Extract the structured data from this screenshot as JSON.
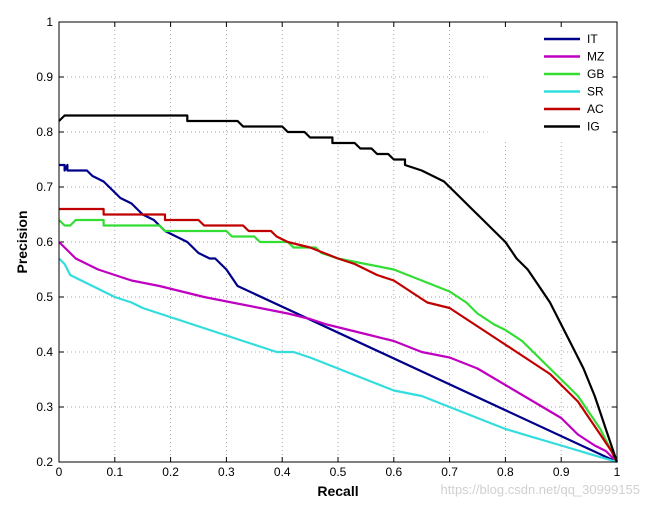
{
  "chart_data": {
    "type": "line",
    "xlabel": "Recall",
    "ylabel": "Precision",
    "xlim": [
      0,
      1
    ],
    "ylim": [
      0.2,
      1
    ],
    "xticks": [
      "0",
      "0.1",
      "0.2",
      "0.3",
      "0.4",
      "0.5",
      "0.6",
      "0.7",
      "0.8",
      "0.9",
      "1"
    ],
    "yticks": [
      "0.2",
      "0.3",
      "0.4",
      "0.5",
      "0.6",
      "0.7",
      "0.8",
      "0.9",
      "1"
    ],
    "grid": true,
    "legend_position": "top-right",
    "series": [
      {
        "name": "IT",
        "color": "#00008b",
        "points": [
          [
            0,
            0.74
          ],
          [
            0.01,
            0.74
          ],
          [
            0.01,
            0.73
          ],
          [
            0.015,
            0.74
          ],
          [
            0.015,
            0.73
          ],
          [
            0.05,
            0.73
          ],
          [
            0.06,
            0.72
          ],
          [
            0.08,
            0.71
          ],
          [
            0.09,
            0.7
          ],
          [
            0.1,
            0.69
          ],
          [
            0.11,
            0.68
          ],
          [
            0.13,
            0.67
          ],
          [
            0.14,
            0.66
          ],
          [
            0.15,
            0.65
          ],
          [
            0.17,
            0.64
          ],
          [
            0.19,
            0.62
          ],
          [
            0.21,
            0.61
          ],
          [
            0.23,
            0.6
          ],
          [
            0.25,
            0.58
          ],
          [
            0.27,
            0.57
          ],
          [
            0.28,
            0.57
          ],
          [
            0.3,
            0.55
          ],
          [
            0.32,
            0.52
          ],
          [
            1,
            0.2
          ]
        ]
      },
      {
        "name": "MZ",
        "color": "#c000c0",
        "points": [
          [
            0,
            0.6
          ],
          [
            0.01,
            0.59
          ],
          [
            0.02,
            0.58
          ],
          [
            0.03,
            0.57
          ],
          [
            0.05,
            0.56
          ],
          [
            0.07,
            0.55
          ],
          [
            0.1,
            0.54
          ],
          [
            0.13,
            0.53
          ],
          [
            0.18,
            0.52
          ],
          [
            0.22,
            0.51
          ],
          [
            0.26,
            0.5
          ],
          [
            0.31,
            0.49
          ],
          [
            0.36,
            0.48
          ],
          [
            0.41,
            0.47
          ],
          [
            0.45,
            0.46
          ],
          [
            0.48,
            0.45
          ],
          [
            0.52,
            0.44
          ],
          [
            0.56,
            0.43
          ],
          [
            0.6,
            0.42
          ],
          [
            0.65,
            0.4
          ],
          [
            0.7,
            0.39
          ],
          [
            0.75,
            0.37
          ],
          [
            0.8,
            0.34
          ],
          [
            0.85,
            0.31
          ],
          [
            0.9,
            0.28
          ],
          [
            0.93,
            0.25
          ],
          [
            0.96,
            0.23
          ],
          [
            0.98,
            0.22
          ],
          [
            1,
            0.2
          ]
        ]
      },
      {
        "name": "GB",
        "color": "#33dd33",
        "points": [
          [
            0,
            0.64
          ],
          [
            0.01,
            0.63
          ],
          [
            0.02,
            0.63
          ],
          [
            0.03,
            0.64
          ],
          [
            0.08,
            0.64
          ],
          [
            0.08,
            0.63
          ],
          [
            0.18,
            0.63
          ],
          [
            0.19,
            0.62
          ],
          [
            0.3,
            0.62
          ],
          [
            0.31,
            0.61
          ],
          [
            0.35,
            0.61
          ],
          [
            0.36,
            0.6
          ],
          [
            0.41,
            0.6
          ],
          [
            0.42,
            0.59
          ],
          [
            0.46,
            0.59
          ],
          [
            0.47,
            0.58
          ],
          [
            0.5,
            0.57
          ],
          [
            0.55,
            0.56
          ],
          [
            0.6,
            0.55
          ],
          [
            0.65,
            0.53
          ],
          [
            0.7,
            0.51
          ],
          [
            0.73,
            0.49
          ],
          [
            0.75,
            0.47
          ],
          [
            0.78,
            0.45
          ],
          [
            0.8,
            0.44
          ],
          [
            0.83,
            0.42
          ],
          [
            0.85,
            0.4
          ],
          [
            0.88,
            0.37
          ],
          [
            0.9,
            0.35
          ],
          [
            0.93,
            0.32
          ],
          [
            0.95,
            0.29
          ],
          [
            0.97,
            0.26
          ],
          [
            0.98,
            0.24
          ],
          [
            0.99,
            0.22
          ],
          [
            1,
            0.2
          ]
        ]
      },
      {
        "name": "SR",
        "color": "#33dddd",
        "points": [
          [
            0,
            0.57
          ],
          [
            0.01,
            0.56
          ],
          [
            0.02,
            0.54
          ],
          [
            0.04,
            0.53
          ],
          [
            0.06,
            0.52
          ],
          [
            0.08,
            0.51
          ],
          [
            0.1,
            0.5
          ],
          [
            0.13,
            0.49
          ],
          [
            0.15,
            0.48
          ],
          [
            0.18,
            0.47
          ],
          [
            0.21,
            0.46
          ],
          [
            0.24,
            0.45
          ],
          [
            0.27,
            0.44
          ],
          [
            0.3,
            0.43
          ],
          [
            0.33,
            0.42
          ],
          [
            0.36,
            0.41
          ],
          [
            0.39,
            0.4
          ],
          [
            0.42,
            0.4
          ],
          [
            0.45,
            0.39
          ],
          [
            0.5,
            0.37
          ],
          [
            0.55,
            0.35
          ],
          [
            0.6,
            0.33
          ],
          [
            0.65,
            0.32
          ],
          [
            0.7,
            0.3
          ],
          [
            0.75,
            0.28
          ],
          [
            0.8,
            0.26
          ],
          [
            0.85,
            0.245
          ],
          [
            0.9,
            0.23
          ],
          [
            0.95,
            0.215
          ],
          [
            1,
            0.2
          ]
        ]
      },
      {
        "name": "AC",
        "color": "#c00000",
        "points": [
          [
            0,
            0.66
          ],
          [
            0.08,
            0.66
          ],
          [
            0.08,
            0.65
          ],
          [
            0.19,
            0.65
          ],
          [
            0.19,
            0.64
          ],
          [
            0.25,
            0.64
          ],
          [
            0.26,
            0.63
          ],
          [
            0.33,
            0.63
          ],
          [
            0.34,
            0.62
          ],
          [
            0.38,
            0.62
          ],
          [
            0.39,
            0.61
          ],
          [
            0.41,
            0.6
          ],
          [
            0.45,
            0.59
          ],
          [
            0.5,
            0.57
          ],
          [
            0.53,
            0.56
          ],
          [
            0.57,
            0.54
          ],
          [
            0.6,
            0.53
          ],
          [
            0.63,
            0.51
          ],
          [
            0.66,
            0.49
          ],
          [
            0.7,
            0.48
          ],
          [
            0.73,
            0.46
          ],
          [
            0.76,
            0.44
          ],
          [
            0.79,
            0.42
          ],
          [
            0.82,
            0.4
          ],
          [
            0.85,
            0.38
          ],
          [
            0.88,
            0.36
          ],
          [
            0.91,
            0.33
          ],
          [
            0.93,
            0.31
          ],
          [
            0.95,
            0.28
          ],
          [
            0.97,
            0.25
          ],
          [
            0.99,
            0.22
          ],
          [
            1,
            0.2
          ]
        ]
      },
      {
        "name": "IG",
        "color": "#000000",
        "points": [
          [
            0,
            0.82
          ],
          [
            0.01,
            0.83
          ],
          [
            0.23,
            0.83
          ],
          [
            0.23,
            0.82
          ],
          [
            0.32,
            0.82
          ],
          [
            0.33,
            0.81
          ],
          [
            0.4,
            0.81
          ],
          [
            0.41,
            0.8
          ],
          [
            0.44,
            0.8
          ],
          [
            0.45,
            0.79
          ],
          [
            0.49,
            0.79
          ],
          [
            0.49,
            0.78
          ],
          [
            0.53,
            0.78
          ],
          [
            0.54,
            0.77
          ],
          [
            0.56,
            0.77
          ],
          [
            0.57,
            0.76
          ],
          [
            0.59,
            0.76
          ],
          [
            0.6,
            0.75
          ],
          [
            0.62,
            0.75
          ],
          [
            0.62,
            0.74
          ],
          [
            0.65,
            0.73
          ],
          [
            0.67,
            0.72
          ],
          [
            0.69,
            0.71
          ],
          [
            0.7,
            0.7
          ],
          [
            0.72,
            0.68
          ],
          [
            0.74,
            0.66
          ],
          [
            0.76,
            0.64
          ],
          [
            0.78,
            0.62
          ],
          [
            0.8,
            0.6
          ],
          [
            0.82,
            0.57
          ],
          [
            0.84,
            0.55
          ],
          [
            0.86,
            0.52
          ],
          [
            0.88,
            0.49
          ],
          [
            0.9,
            0.45
          ],
          [
            0.92,
            0.41
          ],
          [
            0.94,
            0.37
          ],
          [
            0.96,
            0.32
          ],
          [
            0.97,
            0.29
          ],
          [
            0.98,
            0.26
          ],
          [
            0.99,
            0.23
          ],
          [
            1,
            0.2
          ]
        ]
      }
    ]
  },
  "watermark": "https://blog.csdn.net/qq_30999155"
}
